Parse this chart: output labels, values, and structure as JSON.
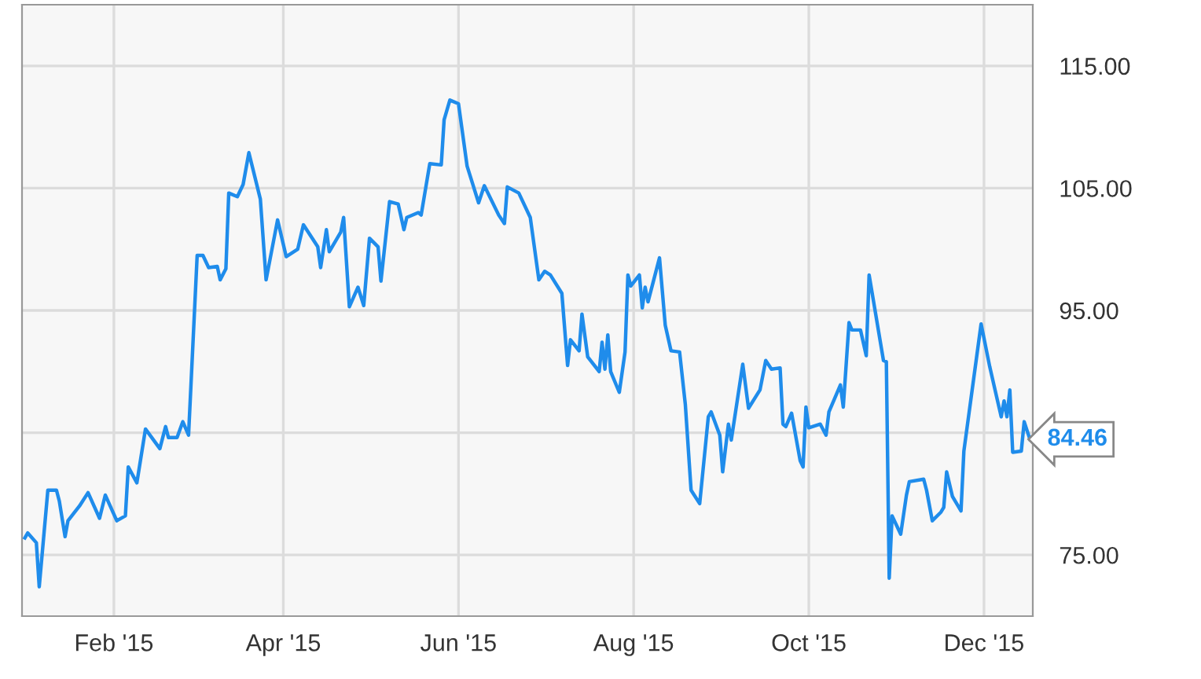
{
  "chart_data": {
    "type": "line",
    "x": [
      "2015-01-01",
      "2015-01-02",
      "2015-01-05",
      "2015-01-06",
      "2015-01-09",
      "2015-01-12",
      "2015-01-13",
      "2015-01-15",
      "2015-01-16",
      "2015-01-20",
      "2015-01-23",
      "2015-01-27",
      "2015-01-29",
      "2015-02-02",
      "2015-02-05",
      "2015-02-06",
      "2015-02-09",
      "2015-02-12",
      "2015-02-17",
      "2015-02-19",
      "2015-02-20",
      "2015-02-23",
      "2015-02-25",
      "2015-02-27",
      "2015-03-02",
      "2015-03-04",
      "2015-03-06",
      "2015-03-09",
      "2015-03-10",
      "2015-03-12",
      "2015-03-13",
      "2015-03-16",
      "2015-03-18",
      "2015-03-20",
      "2015-03-24",
      "2015-03-26",
      "2015-03-30",
      "2015-04-02",
      "2015-04-06",
      "2015-04-08",
      "2015-04-13",
      "2015-04-14",
      "2015-04-16",
      "2015-04-17",
      "2015-04-21",
      "2015-04-22",
      "2015-04-24",
      "2015-04-27",
      "2015-04-29",
      "2015-05-01",
      "2015-05-04",
      "2015-05-05",
      "2015-05-08",
      "2015-05-11",
      "2015-05-13",
      "2015-05-14",
      "2015-05-18",
      "2015-05-19",
      "2015-05-22",
      "2015-05-26",
      "2015-05-27",
      "2015-05-29",
      "2015-06-01",
      "2015-06-04",
      "2015-06-08",
      "2015-06-10",
      "2015-06-15",
      "2015-06-17",
      "2015-06-18",
      "2015-06-22",
      "2015-06-26",
      "2015-06-29",
      "2015-07-01",
      "2015-07-03",
      "2015-07-07",
      "2015-07-09",
      "2015-07-10",
      "2015-07-13",
      "2015-07-14",
      "2015-07-16",
      "2015-07-20",
      "2015-07-21",
      "2015-07-22",
      "2015-07-23",
      "2015-07-24",
      "2015-07-27",
      "2015-07-29",
      "2015-07-30",
      "2015-07-31",
      "2015-08-03",
      "2015-08-04",
      "2015-08-05",
      "2015-08-06",
      "2015-08-10",
      "2015-08-12",
      "2015-08-14",
      "2015-08-17",
      "2015-08-19",
      "2015-08-21",
      "2015-08-24",
      "2015-08-27",
      "2015-08-28",
      "2015-08-31",
      "2015-09-01",
      "2015-09-03",
      "2015-09-04",
      "2015-09-08",
      "2015-09-10",
      "2015-09-14",
      "2015-09-16",
      "2015-09-18",
      "2015-09-21",
      "2015-09-22",
      "2015-09-23",
      "2015-09-25",
      "2015-09-28",
      "2015-09-29",
      "2015-09-30",
      "2015-10-01",
      "2015-10-05",
      "2015-10-07",
      "2015-10-08",
      "2015-10-12",
      "2015-10-13",
      "2015-10-15",
      "2015-10-16",
      "2015-10-19",
      "2015-10-21",
      "2015-10-22",
      "2015-10-27",
      "2015-10-28",
      "2015-10-29",
      "2015-10-30",
      "2015-11-02",
      "2015-11-04",
      "2015-11-05",
      "2015-11-10",
      "2015-11-11",
      "2015-11-13",
      "2015-11-16",
      "2015-11-17",
      "2015-11-18",
      "2015-11-20",
      "2015-11-23",
      "2015-11-24",
      "2015-11-30",
      "2015-12-03",
      "2015-12-07",
      "2015-12-08",
      "2015-12-09",
      "2015-12-10",
      "2015-12-11",
      "2015-12-14",
      "2015-12-15",
      "2015-12-17"
    ],
    "series": [
      {
        "color": "#1f8ceb",
        "values": [
          76.4,
          76.8,
          76.0,
          72.4,
          80.3,
          80.3,
          79.4,
          76.5,
          77.8,
          79.0,
          80.1,
          78.0,
          79.9,
          77.8,
          78.2,
          82.2,
          80.9,
          85.3,
          83.7,
          85.5,
          84.6,
          84.6,
          85.9,
          84.8,
          99.5,
          99.5,
          98.5,
          98.6,
          97.5,
          98.4,
          104.6,
          104.3,
          105.3,
          107.9,
          104.1,
          97.5,
          102.4,
          99.4,
          100.0,
          102.0,
          100.2,
          98.5,
          101.6,
          99.8,
          101.4,
          102.6,
          95.3,
          96.9,
          95.4,
          100.9,
          100.2,
          97.4,
          103.9,
          103.7,
          101.6,
          102.6,
          103.0,
          102.8,
          107.0,
          106.9,
          110.6,
          112.2,
          111.9,
          106.8,
          103.8,
          105.2,
          102.8,
          102.1,
          105.1,
          104.6,
          102.6,
          97.5,
          98.2,
          97.9,
          96.4,
          90.5,
          92.6,
          91.7,
          94.7,
          91.2,
          90.0,
          92.4,
          90.2,
          93.0,
          90.0,
          88.3,
          91.6,
          97.9,
          97.0,
          97.9,
          95.2,
          96.9,
          95.7,
          99.3,
          93.8,
          91.7,
          91.6,
          87.3,
          80.3,
          79.2,
          86.3,
          86.7,
          84.8,
          81.8,
          85.7,
          84.4,
          90.6,
          87.0,
          88.5,
          90.9,
          90.2,
          90.3,
          85.7,
          85.5,
          86.6,
          82.7,
          82.2,
          87.1,
          85.4,
          85.7,
          84.8,
          86.7,
          88.9,
          87.1,
          94.0,
          93.4,
          93.4,
          91.3,
          97.9,
          90.9,
          90.8,
          73.1,
          78.2,
          76.7,
          79.9,
          81.0,
          81.2,
          80.3,
          77.8,
          78.5,
          78.9,
          81.8,
          79.8,
          78.6,
          83.5,
          93.9,
          90.4,
          86.3,
          87.6,
          86.3,
          88.5,
          83.4,
          83.5,
          85.9,
          84.46
        ]
      }
    ],
    "xlim": [
      "2014-12-31",
      "2015-12-18"
    ],
    "xticks": [
      {
        "value": "2015-02-01",
        "label": "Feb '15"
      },
      {
        "value": "2015-04-01",
        "label": "Apr '15"
      },
      {
        "value": "2015-06-01",
        "label": "Jun '15"
      },
      {
        "value": "2015-08-01",
        "label": "Aug '15"
      },
      {
        "value": "2015-10-01",
        "label": "Oct '15"
      },
      {
        "value": "2015-12-01",
        "label": "Dec '15"
      }
    ],
    "ylim": [
      70,
      120
    ],
    "yticks": [
      {
        "value": 75,
        "label": "75.00"
      },
      {
        "value": 85,
        "label": null
      },
      {
        "value": 95,
        "label": "95.00"
      },
      {
        "value": 105,
        "label": "105.00"
      },
      {
        "value": 115,
        "label": "115.00"
      }
    ],
    "annotations": [
      {
        "text": "84.46",
        "x": "2015-12-17",
        "y": 84.46
      }
    ],
    "grid": true,
    "legend": false,
    "marker": "none",
    "line_style": "solid"
  }
}
